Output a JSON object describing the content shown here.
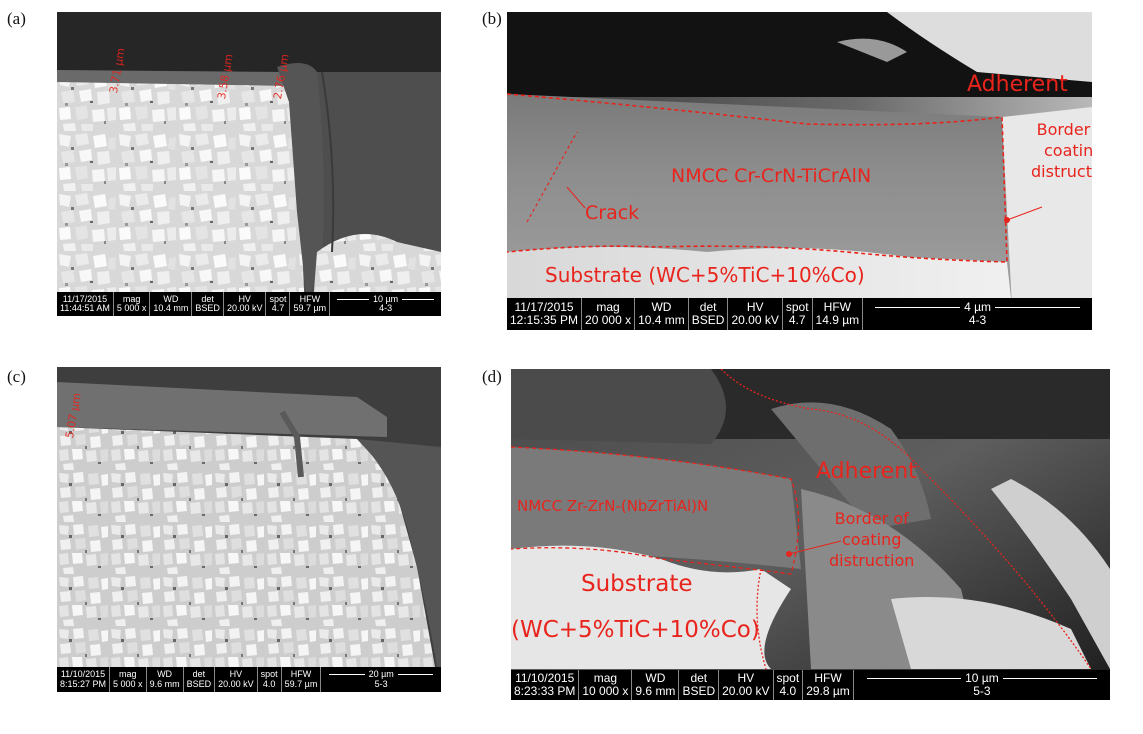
{
  "panels": {
    "a": {
      "label": "(a)",
      "measurements": [
        "3.71 µm",
        "3.58 µm",
        "2.76 µm"
      ],
      "databar": {
        "datetime": [
          "11/17/2015",
          "11:44:51 AM"
        ],
        "mag": [
          "mag",
          "5 000 x"
        ],
        "wd": [
          "WD",
          "10.4 mm"
        ],
        "det": [
          "det",
          "BSED"
        ],
        "hv": [
          "HV",
          "20.00 kV"
        ],
        "spot": [
          "spot",
          "4.7"
        ],
        "hfw": [
          "HFW",
          "59.7 µm"
        ],
        "scale": "10 µm",
        "id": "4-3"
      }
    },
    "b": {
      "label": "(b)",
      "annotations": {
        "adherent": "Adherent",
        "border": [
          "Border of",
          "coating",
          "distruction"
        ],
        "coating": "NMCC Cr-CrN-TiCrAlN",
        "crack": "Crack",
        "substrate": "Substrate (WC+5%TiC+10%Co)"
      },
      "databar": {
        "datetime": [
          "11/17/2015",
          "12:15:35 PM"
        ],
        "mag": [
          "mag",
          "20 000 x"
        ],
        "wd": [
          "WD",
          "10.4 mm"
        ],
        "det": [
          "det",
          "BSED"
        ],
        "hv": [
          "HV",
          "20.00 kV"
        ],
        "spot": [
          "spot",
          "4.7"
        ],
        "hfw": [
          "HFW",
          "14.9 µm"
        ],
        "scale": "4 µm",
        "id": "4-3"
      }
    },
    "c": {
      "label": "(c)",
      "measurements": [
        "5.07 µm"
      ],
      "databar": {
        "datetime": [
          "11/10/2015",
          "8:15:27 PM"
        ],
        "mag": [
          "mag",
          "5 000 x"
        ],
        "wd": [
          "WD",
          "9.6 mm"
        ],
        "det": [
          "det",
          "BSED"
        ],
        "hv": [
          "HV",
          "20.00 kV"
        ],
        "spot": [
          "spot",
          "4.0"
        ],
        "hfw": [
          "HFW",
          "59.7 µm"
        ],
        "scale": "20 µm",
        "id": "5-3"
      }
    },
    "d": {
      "label": "(d)",
      "annotations": {
        "adherent": "Adherent",
        "coating": "NMCC Zr-ZrN-(NbZrTiAl)N",
        "border": [
          "Border of",
          "coating",
          "distruction"
        ],
        "substrate": [
          "Substrate",
          "(WC+5%TiC+10%Co)"
        ]
      },
      "databar": {
        "datetime": [
          "11/10/2015",
          "8:23:33 PM"
        ],
        "mag": [
          "mag",
          "10 000 x"
        ],
        "wd": [
          "WD",
          "9.6 mm"
        ],
        "det": [
          "det",
          "BSED"
        ],
        "hv": [
          "HV",
          "20.00 kV"
        ],
        "spot": [
          "spot",
          "4.0"
        ],
        "hfw": [
          "HFW",
          "29.8 µm"
        ],
        "scale": "10 µm",
        "id": "5-3"
      }
    }
  },
  "colors": {
    "annotation": "#e8241c",
    "databar_bg": "#000000",
    "databar_text": "#ffffff"
  }
}
